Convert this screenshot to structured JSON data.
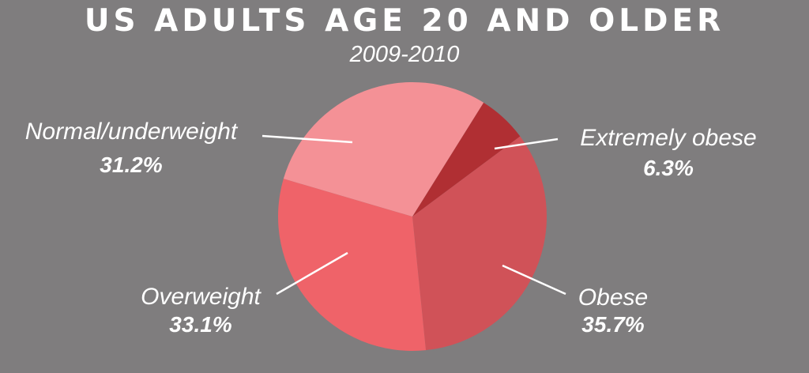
{
  "chart_data": {
    "type": "pie",
    "title": "US ADULTS AGE 20 AND OLDER",
    "subtitle": "2009-2010",
    "slices": [
      {
        "name": "Extremely obese",
        "value": 6.3,
        "value_label": "6.3%",
        "color": "#b02f33"
      },
      {
        "name": "Obese",
        "value": 35.7,
        "value_label": "35.7%",
        "color": "#d05258"
      },
      {
        "name": "Overweight",
        "value": 33.1,
        "value_label": "33.1%",
        "color": "#ef6369"
      },
      {
        "name": "Normal/underweight",
        "value": 31.2,
        "value_label": "31.2%",
        "color": "#f49196"
      }
    ]
  }
}
